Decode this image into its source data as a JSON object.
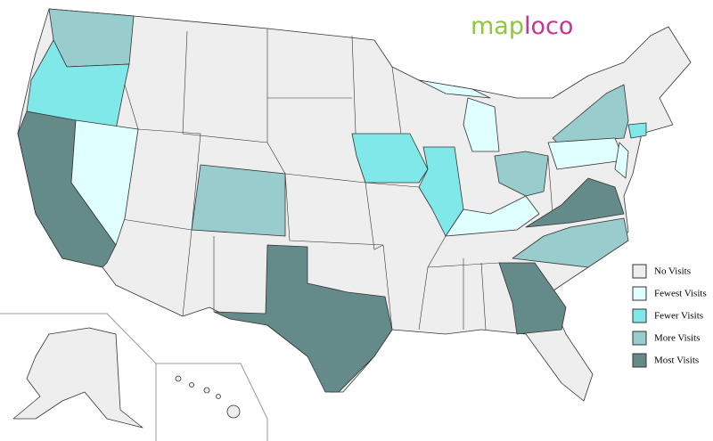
{
  "logo": {
    "part1": "map",
    "part2": "loco",
    "color1": "#8dc63f",
    "color2": "#c8358f"
  },
  "legend": {
    "items": [
      {
        "label": "No Visits",
        "color": "#eeeeee"
      },
      {
        "label": "Fewest Visits",
        "color": "#e0ffff"
      },
      {
        "label": "Fewer Visits",
        "color": "#80e8e8"
      },
      {
        "label": "More Visits",
        "color": "#99cccc"
      },
      {
        "label": "Most Visits",
        "color": "#648a8a"
      }
    ]
  }
}
